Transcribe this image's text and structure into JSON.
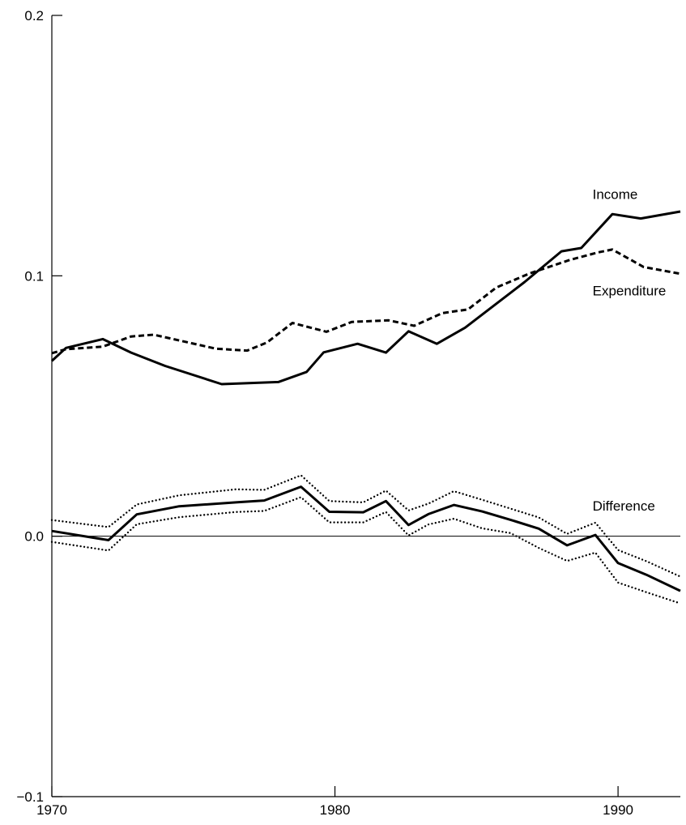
{
  "chart_data": {
    "type": "line",
    "xlim": [
      1970,
      1992.2
    ],
    "ylim": [
      -0.1,
      0.2
    ],
    "x_ticks": [
      1970,
      1980,
      1990
    ],
    "x_tick_labels": [
      "1970",
      "1980",
      "1990"
    ],
    "y_ticks": [
      -0.1,
      0.0,
      0.1,
      0.2
    ],
    "y_tick_labels": [
      "−0.1",
      "0.0",
      "0.1",
      "0.2"
    ],
    "reference_line": 0.0,
    "series": [
      {
        "name": "Income",
        "style": "solid",
        "x": [
          1970,
          1970.5,
          1971.8,
          1972.8,
          1974,
          1976,
          1978,
          1979,
          1979.6,
          1980.8,
          1981.8,
          1982.6,
          1983.6,
          1984.6,
          1986.7,
          1988,
          1988.7,
          1989.8,
          1990.8,
          1992.2
        ],
        "y": [
          0.0673,
          0.0723,
          0.0757,
          0.0705,
          0.0654,
          0.0584,
          0.0592,
          0.0631,
          0.0706,
          0.0739,
          0.0705,
          0.0787,
          0.0739,
          0.0801,
          0.0976,
          0.1094,
          0.1107,
          0.1237,
          0.122,
          0.1247
        ]
      },
      {
        "name": "Expenditure",
        "style": "dashed",
        "x": [
          1970,
          1970.5,
          1971.8,
          1972.8,
          1973.6,
          1975.8,
          1976.9,
          1977.6,
          1978.5,
          1979.7,
          1980.6,
          1981.9,
          1982.8,
          1983.8,
          1984.7,
          1985.7,
          1986.9,
          1988.3,
          1989.3,
          1989.8,
          1990.9,
          1992.2
        ],
        "y": [
          0.0703,
          0.0718,
          0.0728,
          0.0767,
          0.0774,
          0.072,
          0.0713,
          0.0744,
          0.0819,
          0.0785,
          0.0823,
          0.0829,
          0.0808,
          0.0857,
          0.0871,
          0.0955,
          0.101,
          0.1061,
          0.109,
          0.1101,
          0.1034,
          0.1008
        ]
      },
      {
        "name": "Difference",
        "style": "solid",
        "x": [
          1970,
          1972,
          1973,
          1974.5,
          1976.5,
          1977.5,
          1978.8,
          1979.8,
          1981,
          1981.8,
          1982.6,
          1983.3,
          1984.2,
          1985.2,
          1986.2,
          1987.2,
          1988.2,
          1989.2,
          1990,
          1991,
          1992.2
        ],
        "y": [
          0.002,
          -0.0015,
          0.0084,
          0.0115,
          0.013,
          0.0137,
          0.019,
          0.0094,
          0.0092,
          0.0135,
          0.0043,
          0.0085,
          0.012,
          0.0095,
          0.0063,
          0.0029,
          -0.0035,
          0.0005,
          -0.0103,
          -0.0148,
          -0.021
        ]
      },
      {
        "name": "Difference upper band",
        "style": "dotted",
        "x": [
          1970,
          1972,
          1973,
          1974.5,
          1976.5,
          1977.5,
          1978.8,
          1979.8,
          1981,
          1981.8,
          1982.6,
          1983.3,
          1984.2,
          1985.2,
          1986.2,
          1987.2,
          1988.2,
          1989.2,
          1990,
          1991,
          1992.2
        ],
        "y": [
          0.0062,
          0.0035,
          0.0122,
          0.0157,
          0.018,
          0.0178,
          0.0234,
          0.0135,
          0.013,
          0.0175,
          0.0099,
          0.0125,
          0.0173,
          0.014,
          0.0106,
          0.0072,
          0.0009,
          0.0052,
          -0.0053,
          -0.0096,
          -0.0155
        ]
      },
      {
        "name": "Difference lower band",
        "style": "dotted",
        "x": [
          1970,
          1972,
          1973,
          1974.5,
          1976.5,
          1977.5,
          1978.8,
          1979.8,
          1981,
          1981.8,
          1982.6,
          1983.3,
          1984.2,
          1985.2,
          1986.2,
          1987.2,
          1988.2,
          1989.2,
          1990,
          1991,
          1992.2
        ],
        "y": [
          -0.0022,
          -0.0055,
          0.0046,
          0.0073,
          0.0093,
          0.0097,
          0.015,
          0.0053,
          0.0053,
          0.0093,
          0.0003,
          0.0045,
          0.0067,
          0.003,
          0.0012,
          -0.0045,
          -0.0095,
          -0.0063,
          -0.0178,
          -0.0215,
          -0.0258
        ]
      }
    ],
    "annotations": [
      {
        "series": "Income",
        "text": "Income",
        "x": 1989.1,
        "y": 0.1295
      },
      {
        "series": "Expenditure",
        "text": "Expenditure",
        "x": 1989.1,
        "y": 0.0925
      },
      {
        "series": "Difference",
        "text": "Difference",
        "x": 1989.1,
        "y": 0.0098
      }
    ]
  }
}
